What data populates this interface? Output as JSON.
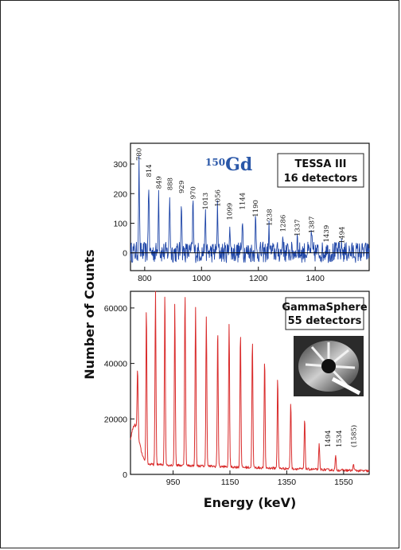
{
  "chart_data": [
    {
      "type": "line",
      "isotope_mass": "150",
      "isotope_element": "Gd",
      "legend": [
        "TESSA III",
        "16 detectors"
      ],
      "xlim": [
        750,
        1590
      ],
      "ylim": [
        -60,
        370
      ],
      "xticks": [
        800,
        1000,
        1200,
        1400
      ],
      "yticks": [
        0,
        100,
        200,
        300
      ],
      "color": "#1f46a8",
      "peaks": [
        {
          "x": 780,
          "y": 300,
          "label": "780"
        },
        {
          "x": 814,
          "y": 245,
          "label": "814"
        },
        {
          "x": 849,
          "y": 205,
          "label": "849"
        },
        {
          "x": 888,
          "y": 200,
          "label": "888"
        },
        {
          "x": 929,
          "y": 190,
          "label": "929"
        },
        {
          "x": 970,
          "y": 170,
          "label": "970"
        },
        {
          "x": 1013,
          "y": 135,
          "label": "1013"
        },
        {
          "x": 1056,
          "y": 145,
          "label": "1056"
        },
        {
          "x": 1099,
          "y": 100,
          "label": "1099"
        },
        {
          "x": 1144,
          "y": 135,
          "label": "1144"
        },
        {
          "x": 1190,
          "y": 110,
          "label": "1190"
        },
        {
          "x": 1238,
          "y": 80,
          "label": "1238"
        },
        {
          "x": 1286,
          "y": 60,
          "label": "1286"
        },
        {
          "x": 1337,
          "y": 45,
          "label": "1337"
        },
        {
          "x": 1387,
          "y": 55,
          "label": "1387"
        },
        {
          "x": 1439,
          "y": 25,
          "label": "1439"
        },
        {
          "x": 1494,
          "y": 20,
          "label": "1494"
        }
      ]
    },
    {
      "type": "line",
      "legend": [
        "GammaSphere",
        "55 detectors"
      ],
      "xlim": [
        800,
        1640
      ],
      "ylim": [
        0,
        66000
      ],
      "xticks": [
        950,
        1150,
        1350,
        1550
      ],
      "yticks": [
        0,
        20000,
        40000,
        60000
      ],
      "color": "#d92b2b",
      "xlabel": "Energy (keV)",
      "peaks": [
        {
          "x": 825,
          "y": 23000
        },
        {
          "x": 856,
          "y": 56000
        },
        {
          "x": 888,
          "y": 62500
        },
        {
          "x": 921,
          "y": 62500
        },
        {
          "x": 956,
          "y": 58000
        },
        {
          "x": 992,
          "y": 62500
        },
        {
          "x": 1029,
          "y": 57000
        },
        {
          "x": 1067,
          "y": 54000
        },
        {
          "x": 1107,
          "y": 50000
        },
        {
          "x": 1147,
          "y": 52000
        },
        {
          "x": 1187,
          "y": 49000
        },
        {
          "x": 1229,
          "y": 46000
        },
        {
          "x": 1272,
          "y": 39000
        },
        {
          "x": 1318,
          "y": 33000
        },
        {
          "x": 1364,
          "y": 24000
        },
        {
          "x": 1413,
          "y": 18000
        },
        {
          "x": 1464,
          "y": 9000
        },
        {
          "x": 1522,
          "y": 5000
        },
        {
          "x": 1585,
          "y": 2500
        }
      ],
      "peak_labels": [
        {
          "x": 1494,
          "text": "1494"
        },
        {
          "x": 1534,
          "text": "1534"
        },
        {
          "x": 1585,
          "text": "(1585)"
        }
      ]
    }
  ],
  "ylabel": "Number of Counts"
}
